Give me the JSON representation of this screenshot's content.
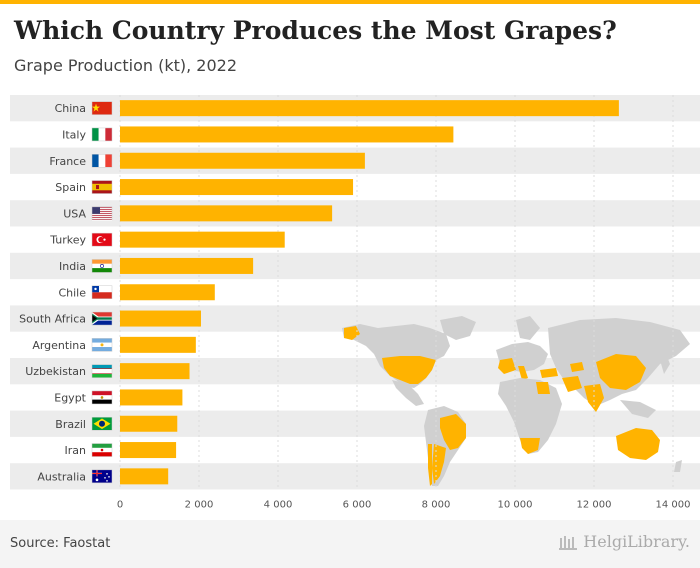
{
  "header": {
    "title": "Which Country Produces the Most Grapes?",
    "subtitle": "Grape Production (kt), 2022"
  },
  "footer": {
    "source": "Source: Faostat",
    "logo_text": "HelgiLibrary."
  },
  "colors": {
    "bar": "#ffb300",
    "accent": "#ffb300",
    "map_land": "#d0d0d0",
    "map_highlight": "#ffb300",
    "stripe": "#ececec"
  },
  "chart_data": {
    "type": "bar",
    "orientation": "horizontal",
    "title": "Which Country Produces the Most Grapes?",
    "subtitle": "Grape Production (kt), 2022",
    "xlim": [
      0,
      14000
    ],
    "xticks": [
      0,
      2000,
      4000,
      6000,
      8000,
      10000,
      12000,
      14000
    ],
    "xtick_labels": [
      "0",
      "2 000",
      "4 000",
      "6 000",
      "8 000",
      "10 000",
      "12 000",
      "14 000"
    ],
    "categories": [
      "China",
      "Italy",
      "France",
      "Spain",
      "USA",
      "Turkey",
      "India",
      "Chile",
      "South Africa",
      "Argentina",
      "Uzbekistan",
      "Egypt",
      "Brazil",
      "Iran",
      "Australia"
    ],
    "values": [
      12630,
      8440,
      6200,
      5900,
      5370,
      4170,
      3370,
      2400,
      2050,
      1920,
      1760,
      1580,
      1450,
      1420,
      1220
    ],
    "flags": [
      "china-flag",
      "italy-flag",
      "france-flag",
      "spain-flag",
      "usa-flag",
      "turkey-flag",
      "india-flag",
      "chile-flag",
      "south-africa-flag",
      "argentina-flag",
      "uzbekistan-flag",
      "egypt-flag",
      "brazil-flag",
      "iran-flag",
      "australia-flag"
    ],
    "grid": true,
    "background_map": "world-map-highlighting-top-producers"
  }
}
